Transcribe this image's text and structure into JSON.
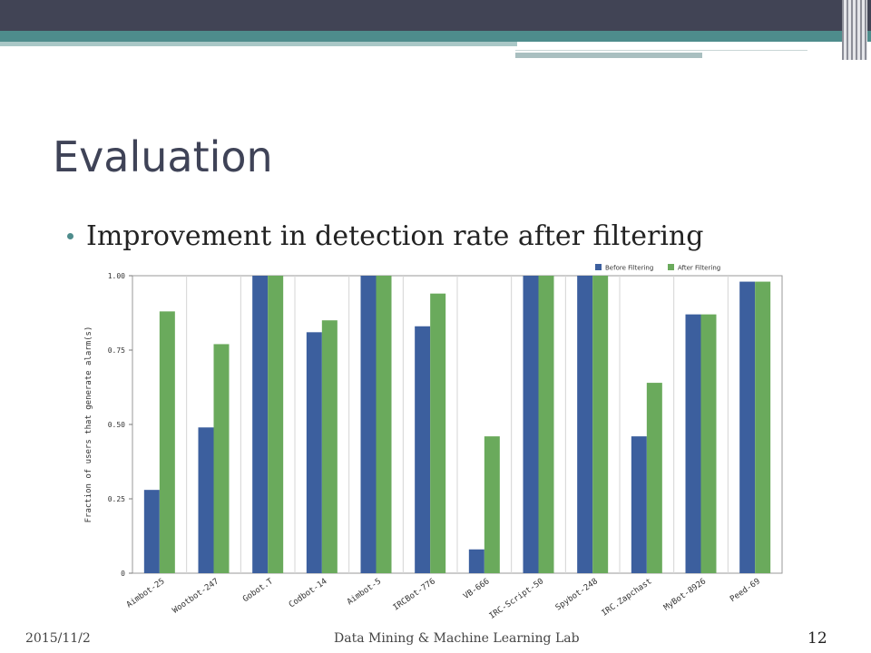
{
  "slide": {
    "title": "Evaluation",
    "bullet": "Improvement in detection rate after filtering"
  },
  "footer": {
    "date": "2015/11/2",
    "lab": "Data Mining & Machine Learning Lab",
    "page": "12"
  },
  "colors": {
    "header_dark": "#414455",
    "header_teal": "#4e8c8c",
    "before": "#3c5f9e",
    "after": "#6aaa5c"
  },
  "chart_data": {
    "type": "bar",
    "title": "",
    "xlabel": "",
    "ylabel": "Fraction of users that generate alarm(s)",
    "ylim": [
      0,
      1
    ],
    "yticks": [
      0,
      0.25,
      0.5,
      0.75,
      1.0
    ],
    "ytick_labels": [
      "0",
      "0.25",
      "0.50",
      "0.75",
      "1.00"
    ],
    "grid": "vertical",
    "legend_position": "top-right",
    "categories": [
      "Aimbot-25",
      "Wootbot-247",
      "Gobot.T",
      "Codbot-14",
      "Aimbot-5",
      "IRCBot-776",
      "VB-666",
      "IRC-Script-50",
      "Spybot-248",
      "IRC.Zapchast",
      "MyBot-8926",
      "Peed-69"
    ],
    "series": [
      {
        "name": "Before Filtering",
        "color": "#3c5f9e",
        "values": [
          0.28,
          0.49,
          1.0,
          0.81,
          1.0,
          0.83,
          0.08,
          1.0,
          1.0,
          0.46,
          0.87,
          0.98
        ]
      },
      {
        "name": "After Filtering",
        "color": "#6aaa5c",
        "values": [
          0.88,
          0.77,
          1.0,
          0.85,
          1.0,
          0.94,
          0.46,
          1.0,
          1.0,
          0.64,
          0.87,
          0.98
        ]
      }
    ]
  }
}
